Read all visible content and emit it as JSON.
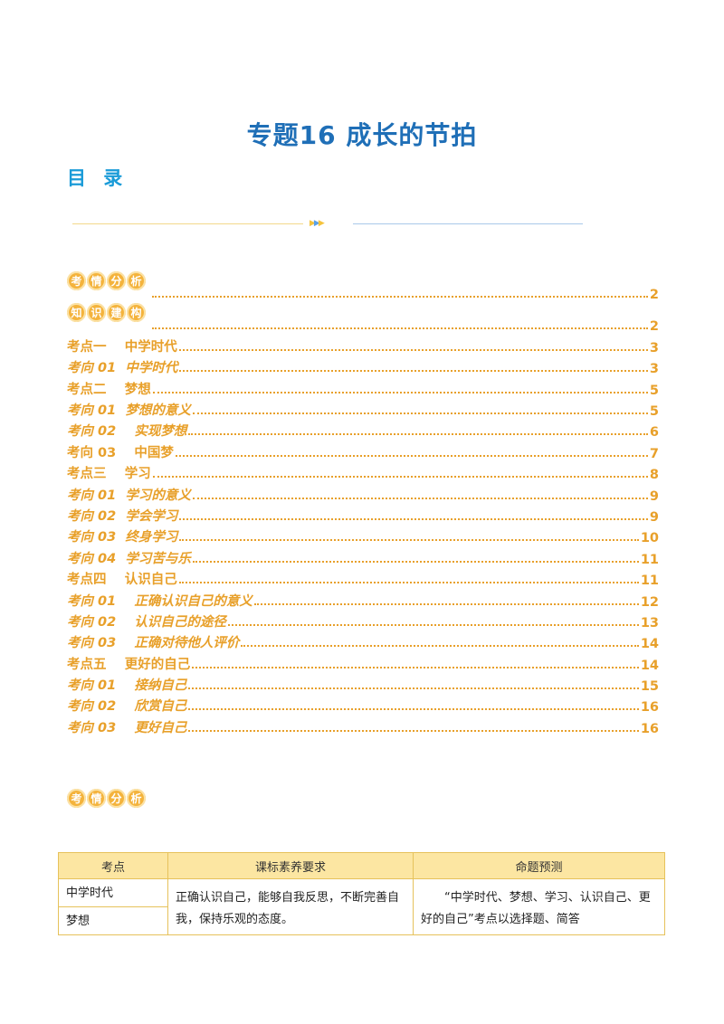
{
  "doc": {
    "title": "专题16  成长的节拍",
    "toc_heading": "目 录"
  },
  "badges": {
    "kaoqing": [
      "考",
      "情",
      "分",
      "析"
    ],
    "zhishi": [
      "知",
      "识",
      "建",
      "构"
    ]
  },
  "toc": [
    {
      "label": "",
      "page": "2",
      "kind": "badge-kaoqing"
    },
    {
      "label": "",
      "page": "2",
      "kind": "badge-zhishi"
    },
    {
      "label": "考点一    中学时代",
      "page": "3",
      "kind": "kd"
    },
    {
      "label": "考向 01  中学时代",
      "page": "3",
      "kind": "kx"
    },
    {
      "label": "考点二    梦想",
      "page": "5",
      "kind": "kd"
    },
    {
      "label": "考向 01  梦想的意义",
      "page": "5",
      "kind": "kx"
    },
    {
      "label": "考向 02    实现梦想",
      "page": "6",
      "kind": "kx"
    },
    {
      "label": "考向 03    中国梦",
      "page": "7",
      "kind": "kd"
    },
    {
      "label": "考点三    学习",
      "page": "8",
      "kind": "kd"
    },
    {
      "label": "考向 01  学习的意义",
      "page": "9",
      "kind": "kx"
    },
    {
      "label": "考向 02  学会学习",
      "page": "9",
      "kind": "kx"
    },
    {
      "label": "考向 03  终身学习",
      "page": "10",
      "kind": "kx"
    },
    {
      "label": "考向 04  学习苦与乐",
      "page": "11",
      "kind": "kx"
    },
    {
      "label": "考点四    认识自己",
      "page": "11",
      "kind": "kd"
    },
    {
      "label": "考向 01    正确认识自己的意义",
      "page": "12",
      "kind": "kx"
    },
    {
      "label": "考向 02    认识自己的途径",
      "page": "13",
      "kind": "kx"
    },
    {
      "label": "考向 03    正确对待他人评价",
      "page": "14",
      "kind": "kx"
    },
    {
      "label": "考点五    更好的自己",
      "page": "14",
      "kind": "kd"
    },
    {
      "label": "考向 01    接纳自己",
      "page": "15",
      "kind": "kx"
    },
    {
      "label": "考向 02    欣赏自己",
      "page": "16",
      "kind": "kx"
    },
    {
      "label": "考向 03    更好自己",
      "page": "16",
      "kind": "kx"
    }
  ],
  "table": {
    "headers": [
      "考点",
      "课标素养要求",
      "命题预测"
    ],
    "kaodian": [
      "中学时代",
      "梦想"
    ],
    "requirement": "正确认识自己，能够自我反思，不断完善自我，保持乐观的态度。",
    "prediction": "“中学时代、梦想、学习、认识自己、更好的自己”考点以选择题、简答"
  }
}
